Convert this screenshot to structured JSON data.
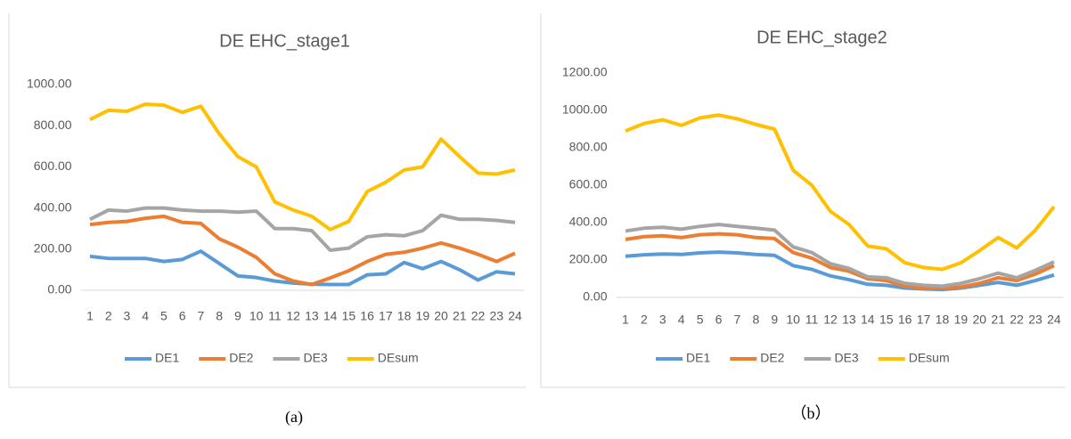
{
  "chart_data": [
    {
      "type": "line",
      "title": "DE EHC_stage1",
      "categories": [
        "1",
        "2",
        "3",
        "4",
        "5",
        "6",
        "7",
        "8",
        "9",
        "10",
        "11",
        "12",
        "13",
        "14",
        "15",
        "16",
        "17",
        "18",
        "19",
        "20",
        "21",
        "22",
        "23",
        "24"
      ],
      "series": [
        {
          "name": "DE1",
          "color": "#5b9bd5",
          "values": [
            165,
            155,
            155,
            155,
            140,
            150,
            190,
            130,
            70,
            62,
            45,
            35,
            30,
            28,
            28,
            75,
            80,
            135,
            105,
            140,
            100,
            50,
            90,
            80
          ]
        },
        {
          "name": "DE2",
          "color": "#ed7d31",
          "values": [
            320,
            330,
            335,
            350,
            360,
            330,
            325,
            250,
            210,
            160,
            80,
            45,
            28,
            60,
            95,
            140,
            175,
            185,
            205,
            230,
            205,
            175,
            140,
            180
          ]
        },
        {
          "name": "DE3",
          "color": "#a5a5a5",
          "values": [
            345,
            390,
            385,
            400,
            400,
            390,
            385,
            385,
            380,
            385,
            300,
            300,
            290,
            195,
            205,
            260,
            270,
            265,
            290,
            365,
            345,
            345,
            340,
            330
          ]
        },
        {
          "name": "DEsum",
          "color": "#ffc000",
          "values": [
            830,
            875,
            870,
            905,
            900,
            865,
            895,
            760,
            650,
            600,
            430,
            390,
            360,
            295,
            335,
            480,
            525,
            585,
            600,
            735,
            650,
            570,
            565,
            585
          ]
        }
      ],
      "ylim": [
        0,
        1000
      ],
      "yticks": [
        {
          "value": 0,
          "label": "0.00"
        },
        {
          "value": 200,
          "label": "200.00"
        },
        {
          "value": 400,
          "label": "400.00"
        },
        {
          "value": 600,
          "label": "600.00"
        },
        {
          "value": 800,
          "label": "800.00"
        },
        {
          "value": 1000,
          "label": "1000.00"
        }
      ],
      "grid": false,
      "legend": "bottom"
    },
    {
      "type": "line",
      "title": "DE EHC_stage2",
      "categories": [
        "1",
        "2",
        "3",
        "4",
        "5",
        "6",
        "7",
        "8",
        "9",
        "10",
        "11",
        "12",
        "13",
        "14",
        "15",
        "16",
        "17",
        "18",
        "19",
        "20",
        "21",
        "22",
        "23",
        "24"
      ],
      "series": [
        {
          "name": "DE1",
          "color": "#5b9bd5",
          "values": [
            220,
            228,
            232,
            230,
            238,
            242,
            238,
            230,
            225,
            170,
            150,
            115,
            95,
            70,
            65,
            50,
            45,
            42,
            50,
            65,
            80,
            65,
            90,
            120
          ]
        },
        {
          "name": "DE2",
          "color": "#ed7d31",
          "values": [
            310,
            325,
            330,
            320,
            335,
            340,
            335,
            320,
            315,
            240,
            210,
            160,
            140,
            100,
            90,
            60,
            50,
            50,
            55,
            75,
            105,
            90,
            125,
            170
          ]
        },
        {
          "name": "DE3",
          "color": "#a5a5a5",
          "values": [
            355,
            370,
            375,
            365,
            380,
            390,
            380,
            370,
            360,
            270,
            240,
            180,
            155,
            110,
            105,
            75,
            65,
            60,
            75,
            100,
            130,
            105,
            145,
            190
          ]
        },
        {
          "name": "DEsum",
          "color": "#ffc000",
          "values": [
            890,
            930,
            950,
            920,
            960,
            975,
            955,
            925,
            900,
            680,
            600,
            460,
            390,
            275,
            260,
            185,
            160,
            150,
            185,
            250,
            320,
            265,
            360,
            485
          ]
        }
      ],
      "ylim": [
        0,
        1200
      ],
      "yticks": [
        {
          "value": 0,
          "label": "0.00"
        },
        {
          "value": 200,
          "label": "200.00"
        },
        {
          "value": 400,
          "label": "400.00"
        },
        {
          "value": 600,
          "label": "600.00"
        },
        {
          "value": 800,
          "label": "800.00"
        },
        {
          "value": 1000,
          "label": "1000.00"
        },
        {
          "value": 1200,
          "label": "1200.00"
        }
      ],
      "grid": false,
      "legend": "bottom"
    }
  ],
  "captions": [
    "(a)",
    "（b）"
  ]
}
